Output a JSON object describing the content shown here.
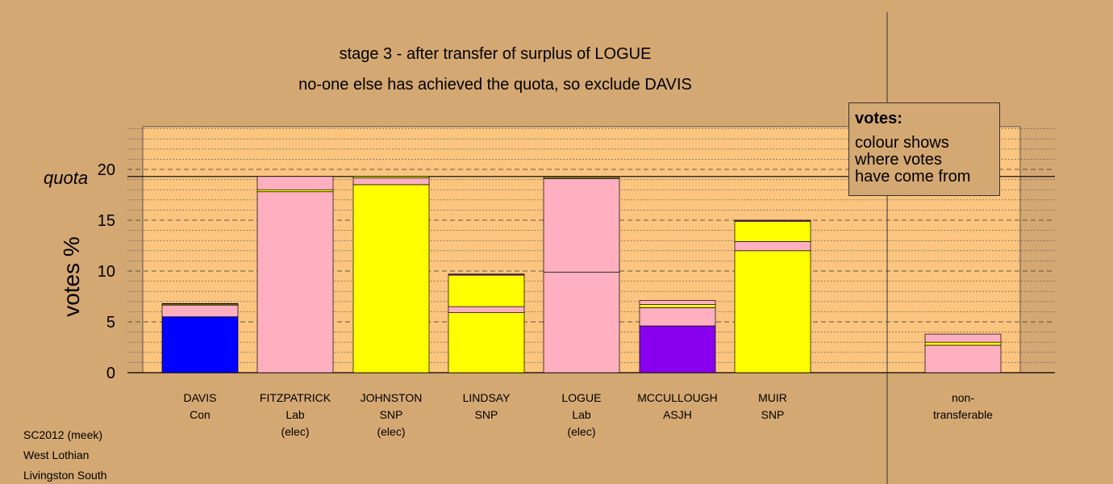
{
  "title_lines": [
    "stage 3 - after transfer of surplus of LOGUE",
    "no-one else has achieved the quota, so exclude DAVIS"
  ],
  "legend": {
    "title": "votes:",
    "lines": [
      "colour shows",
      "where votes",
      "have come from"
    ]
  },
  "footer": [
    "SC2012 (meek)",
    "West Lothian",
    "Livingston South"
  ],
  "colors": {
    "background": "#d4a873",
    "plot_bg": "#fbc580",
    "Con": "#0000ff",
    "Lab": "#ffb0c0",
    "SNP": "#ffff00",
    "ASJH": "#8800ee"
  },
  "chart_data": {
    "type": "bar",
    "stacked": true,
    "ylabel": "votes %",
    "quota_label": "quota",
    "quota": 19.3,
    "ylim": [
      0,
      24.5
    ],
    "yticks": [
      0,
      5,
      10,
      15,
      20
    ],
    "grid": "dotted minor every 1, dashed major every 5",
    "candidates": [
      {
        "name": "DAVIS",
        "party": "Con",
        "status": "",
        "segments": [
          {
            "source": "Con",
            "value": 5.5
          },
          {
            "source": "Lab",
            "value": 1.15
          },
          {
            "source": "SNP",
            "value": 0.1
          },
          {
            "source": "ASJH",
            "value": 0.05
          }
        ]
      },
      {
        "name": "FITZPATRICK",
        "party": "Lab",
        "status": "(elec)",
        "segments": [
          {
            "source": "Lab",
            "value": 17.8
          },
          {
            "source": "SNP",
            "value": 0.2
          },
          {
            "source": "Lab",
            "value": 1.3
          }
        ]
      },
      {
        "name": "JOHNSTON",
        "party": "SNP",
        "status": "(elec)",
        "segments": [
          {
            "source": "SNP",
            "value": 18.5
          },
          {
            "source": "Lab",
            "value": 0.65
          },
          {
            "source": "SNP",
            "value": 0.15
          }
        ]
      },
      {
        "name": "LINDSAY",
        "party": "SNP",
        "status": "",
        "segments": [
          {
            "source": "SNP",
            "value": 5.9
          },
          {
            "source": "Lab",
            "value": 0.6
          },
          {
            "source": "SNP",
            "value": 3.1
          },
          {
            "source": "ASJH",
            "value": 0.1
          }
        ]
      },
      {
        "name": "LOGUE",
        "party": "Lab",
        "status": "(elec)",
        "segments": [
          {
            "source": "Lab",
            "value": 9.9
          },
          {
            "source": "Lab",
            "value": 9.2
          },
          {
            "source": "SNP",
            "value": 0.1
          }
        ]
      },
      {
        "name": "MCCULLOUGH",
        "party": "ASJH",
        "status": "",
        "segments": [
          {
            "source": "ASJH",
            "value": 4.6
          },
          {
            "source": "Lab",
            "value": 1.8
          },
          {
            "source": "SNP",
            "value": 0.3
          },
          {
            "source": "Lab",
            "value": 0.4
          }
        ]
      },
      {
        "name": "MUIR",
        "party": "SNP",
        "status": "",
        "segments": [
          {
            "source": "SNP",
            "value": 12.0
          },
          {
            "source": "Lab",
            "value": 0.9
          },
          {
            "source": "SNP",
            "value": 2.0
          },
          {
            "source": "ASJH",
            "value": 0.1
          }
        ]
      },
      {
        "name": "non-",
        "party": "transferable",
        "status": "",
        "nontransferable": true,
        "segments": [
          {
            "source": "Lab",
            "value": 2.7
          },
          {
            "source": "SNP",
            "value": 0.3
          },
          {
            "source": "Lab",
            "value": 0.8
          }
        ]
      }
    ]
  }
}
